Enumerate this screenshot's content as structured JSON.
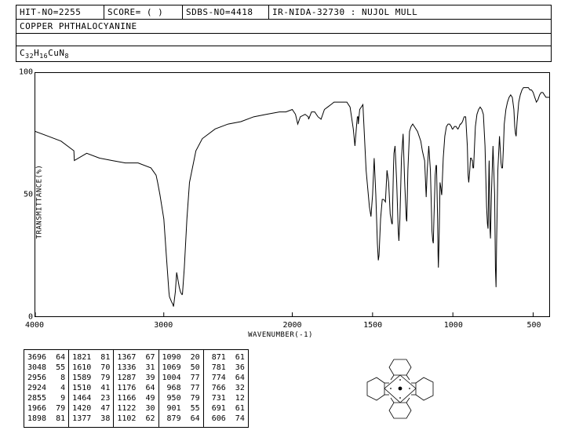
{
  "header": {
    "hit_no": "HIT-NO=2255",
    "score": "SCORE=  (   )",
    "sdbs": "SDBS-NO=4418",
    "ir": "IR-NIDA-32730 : NUJOL MULL",
    "compound": "COPPER PHTHALOCYANINE",
    "formula_html": "C<sub>32</sub>H<sub>16</sub>CuN<sub>8</sub>"
  },
  "chart": {
    "type": "line",
    "xlabel": "WAVENUMBER(-1)",
    "ylabel": "TRANSMITTANCE(%)",
    "xlim": [
      4000,
      400
    ],
    "ylim": [
      0,
      100
    ],
    "xticks": [
      4000,
      3000,
      2000,
      1500,
      1000,
      500
    ],
    "yticks": [
      0,
      50,
      100
    ],
    "line_color": "#000000",
    "background_color": "#ffffff",
    "series": [
      [
        4000,
        76
      ],
      [
        3900,
        74
      ],
      [
        3800,
        72
      ],
      [
        3700,
        68
      ],
      [
        3696,
        64
      ],
      [
        3600,
        67
      ],
      [
        3500,
        65
      ],
      [
        3400,
        64
      ],
      [
        3300,
        63
      ],
      [
        3200,
        63
      ],
      [
        3100,
        61
      ],
      [
        3060,
        58
      ],
      [
        3048,
        55
      ],
      [
        3030,
        50
      ],
      [
        3000,
        40
      ],
      [
        2980,
        25
      ],
      [
        2960,
        10
      ],
      [
        2956,
        8
      ],
      [
        2940,
        6
      ],
      [
        2930,
        5
      ],
      [
        2924,
        4
      ],
      [
        2910,
        10
      ],
      [
        2900,
        18
      ],
      [
        2880,
        12
      ],
      [
        2870,
        10
      ],
      [
        2860,
        9
      ],
      [
        2855,
        9
      ],
      [
        2840,
        20
      ],
      [
        2820,
        40
      ],
      [
        2800,
        55
      ],
      [
        2750,
        68
      ],
      [
        2700,
        73
      ],
      [
        2600,
        77
      ],
      [
        2500,
        79
      ],
      [
        2400,
        80
      ],
      [
        2300,
        82
      ],
      [
        2200,
        83
      ],
      [
        2100,
        84
      ],
      [
        2050,
        84
      ],
      [
        2000,
        85
      ],
      [
        1980,
        83
      ],
      [
        1966,
        79
      ],
      [
        1950,
        82
      ],
      [
        1920,
        83
      ],
      [
        1900,
        82
      ],
      [
        1898,
        81
      ],
      [
        1880,
        84
      ],
      [
        1860,
        84
      ],
      [
        1840,
        82
      ],
      [
        1821,
        81
      ],
      [
        1800,
        85
      ],
      [
        1780,
        86
      ],
      [
        1760,
        87
      ],
      [
        1740,
        88
      ],
      [
        1720,
        88
      ],
      [
        1700,
        88
      ],
      [
        1680,
        88
      ],
      [
        1660,
        88
      ],
      [
        1640,
        86
      ],
      [
        1620,
        77
      ],
      [
        1610,
        70
      ],
      [
        1600,
        78
      ],
      [
        1595,
        82
      ],
      [
        1590,
        82
      ],
      [
        1589,
        79
      ],
      [
        1580,
        85
      ],
      [
        1560,
        87
      ],
      [
        1540,
        60
      ],
      [
        1520,
        45
      ],
      [
        1510,
        41
      ],
      [
        1500,
        50
      ],
      [
        1490,
        65
      ],
      [
        1480,
        50
      ],
      [
        1470,
        30
      ],
      [
        1464,
        23
      ],
      [
        1460,
        25
      ],
      [
        1450,
        40
      ],
      [
        1440,
        48
      ],
      [
        1430,
        48
      ],
      [
        1420,
        47
      ],
      [
        1410,
        60
      ],
      [
        1400,
        55
      ],
      [
        1390,
        42
      ],
      [
        1380,
        38
      ],
      [
        1377,
        38
      ],
      [
        1375,
        45
      ],
      [
        1370,
        60
      ],
      [
        1367,
        67
      ],
      [
        1360,
        70
      ],
      [
        1350,
        55
      ],
      [
        1340,
        35
      ],
      [
        1336,
        31
      ],
      [
        1330,
        40
      ],
      [
        1320,
        65
      ],
      [
        1310,
        75
      ],
      [
        1300,
        55
      ],
      [
        1290,
        40
      ],
      [
        1287,
        39
      ],
      [
        1280,
        60
      ],
      [
        1270,
        76
      ],
      [
        1260,
        78
      ],
      [
        1250,
        79
      ],
      [
        1240,
        78
      ],
      [
        1220,
        76
      ],
      [
        1200,
        72
      ],
      [
        1190,
        68
      ],
      [
        1180,
        65
      ],
      [
        1176,
        64
      ],
      [
        1170,
        55
      ],
      [
        1166,
        49
      ],
      [
        1160,
        60
      ],
      [
        1150,
        70
      ],
      [
        1140,
        60
      ],
      [
        1130,
        35
      ],
      [
        1125,
        31
      ],
      [
        1122,
        30
      ],
      [
        1118,
        40
      ],
      [
        1110,
        58
      ],
      [
        1105,
        62
      ],
      [
        1102,
        62
      ],
      [
        1095,
        40
      ],
      [
        1092,
        25
      ],
      [
        1090,
        20
      ],
      [
        1085,
        35
      ],
      [
        1080,
        55
      ],
      [
        1075,
        53
      ],
      [
        1070,
        50
      ],
      [
        1069,
        50
      ],
      [
        1060,
        65
      ],
      [
        1050,
        74
      ],
      [
        1040,
        78
      ],
      [
        1030,
        79
      ],
      [
        1020,
        79
      ],
      [
        1010,
        78
      ],
      [
        1004,
        77
      ],
      [
        1000,
        77
      ],
      [
        990,
        78
      ],
      [
        980,
        78
      ],
      [
        970,
        77
      ],
      [
        968,
        77
      ],
      [
        960,
        78
      ],
      [
        955,
        79
      ],
      [
        950,
        79
      ],
      [
        940,
        80
      ],
      [
        930,
        82
      ],
      [
        920,
        82
      ],
      [
        910,
        70
      ],
      [
        905,
        58
      ],
      [
        901,
        55
      ],
      [
        895,
        60
      ],
      [
        890,
        65
      ],
      [
        885,
        65
      ],
      [
        880,
        64
      ],
      [
        879,
        64
      ],
      [
        875,
        61
      ],
      [
        871,
        61
      ],
      [
        865,
        70
      ],
      [
        860,
        78
      ],
      [
        850,
        83
      ],
      [
        840,
        85
      ],
      [
        830,
        86
      ],
      [
        820,
        85
      ],
      [
        810,
        83
      ],
      [
        800,
        70
      ],
      [
        790,
        45
      ],
      [
        785,
        38
      ],
      [
        781,
        36
      ],
      [
        778,
        50
      ],
      [
        775,
        62
      ],
      [
        774,
        64
      ],
      [
        772,
        55
      ],
      [
        770,
        40
      ],
      [
        768,
        35
      ],
      [
        766,
        32
      ],
      [
        760,
        50
      ],
      [
        750,
        70
      ],
      [
        740,
        50
      ],
      [
        735,
        20
      ],
      [
        732,
        14
      ],
      [
        731,
        12
      ],
      [
        728,
        30
      ],
      [
        720,
        60
      ],
      [
        710,
        74
      ],
      [
        700,
        63
      ],
      [
        696,
        61
      ],
      [
        691,
        61
      ],
      [
        685,
        70
      ],
      [
        680,
        79
      ],
      [
        670,
        85
      ],
      [
        660,
        88
      ],
      [
        650,
        90
      ],
      [
        640,
        91
      ],
      [
        630,
        90
      ],
      [
        620,
        85
      ],
      [
        615,
        78
      ],
      [
        610,
        75
      ],
      [
        606,
        74
      ],
      [
        600,
        80
      ],
      [
        590,
        88
      ],
      [
        580,
        91
      ],
      [
        570,
        93
      ],
      [
        560,
        94
      ],
      [
        550,
        94
      ],
      [
        540,
        94
      ],
      [
        530,
        94
      ],
      [
        520,
        93
      ],
      [
        510,
        93
      ],
      [
        500,
        92
      ],
      [
        490,
        90
      ],
      [
        480,
        88
      ],
      [
        470,
        89
      ],
      [
        460,
        91
      ],
      [
        450,
        92
      ],
      [
        440,
        92
      ],
      [
        430,
        91
      ],
      [
        420,
        90
      ],
      [
        410,
        90
      ],
      [
        400,
        90
      ]
    ]
  },
  "peaks": {
    "columns": [
      [
        [
          3696,
          64
        ],
        [
          3048,
          55
        ],
        [
          2956,
          8
        ],
        [
          2924,
          4
        ],
        [
          2855,
          9
        ],
        [
          1966,
          79
        ],
        [
          1898,
          81
        ]
      ],
      [
        [
          1821,
          81
        ],
        [
          1610,
          70
        ],
        [
          1589,
          79
        ],
        [
          1510,
          41
        ],
        [
          1464,
          23
        ],
        [
          1420,
          47
        ],
        [
          1377,
          38
        ]
      ],
      [
        [
          1367,
          67
        ],
        [
          1336,
          31
        ],
        [
          1287,
          39
        ],
        [
          1176,
          64
        ],
        [
          1166,
          49
        ],
        [
          1122,
          30
        ],
        [
          1102,
          62
        ]
      ],
      [
        [
          1090,
          20
        ],
        [
          1069,
          50
        ],
        [
          1004,
          77
        ],
        [
          968,
          77
        ],
        [
          950,
          79
        ],
        [
          901,
          55
        ],
        [
          879,
          64
        ]
      ],
      [
        [
          871,
          61
        ],
        [
          781,
          36
        ],
        [
          774,
          64
        ],
        [
          766,
          32
        ],
        [
          731,
          12
        ],
        [
          691,
          61
        ],
        [
          606,
          74
        ]
      ]
    ]
  }
}
